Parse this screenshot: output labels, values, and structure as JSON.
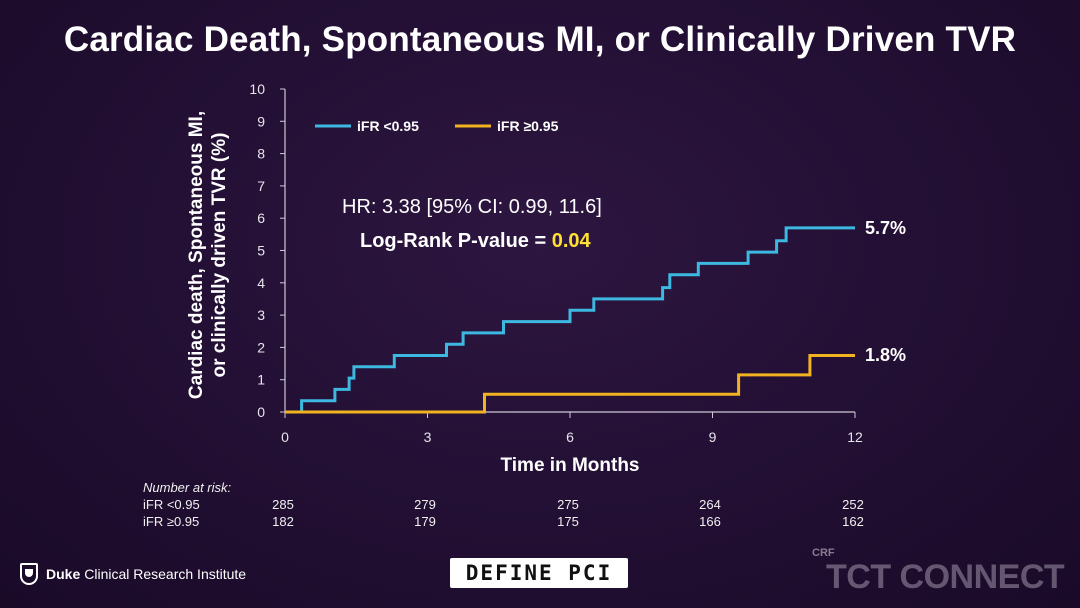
{
  "title": "Cardiac Death, Spontaneous MI, or Clinically Driven TVR",
  "annotations": {
    "hr_text": "HR: 3.38 [95% CI: 0.99, 11.6]",
    "logrank_prefix": "Log-Rank P-value = ",
    "logrank_value": "0.04",
    "logrank_value_color": "#ffe033"
  },
  "chart_data": {
    "type": "line",
    "step": true,
    "ylabel": "Cardiac death, Spontaneous MI,\nor clinically driven TVR (%)",
    "xlabel": "Time in Months",
    "xlim": [
      0,
      12
    ],
    "ylim": [
      0,
      10
    ],
    "xticks": [
      0,
      3,
      6,
      9,
      12
    ],
    "yticks": [
      0,
      1,
      2,
      3,
      4,
      5,
      6,
      7,
      8,
      9,
      10
    ],
    "legend_position": "top-left",
    "series": [
      {
        "name": "iFR <0.95",
        "color": "#3db8e0",
        "end_label": "5.7%",
        "points": [
          [
            0,
            0
          ],
          [
            0.35,
            0
          ],
          [
            0.35,
            0.35
          ],
          [
            1.05,
            0.35
          ],
          [
            1.05,
            0.7
          ],
          [
            1.35,
            0.7
          ],
          [
            1.35,
            1.05
          ],
          [
            1.45,
            1.05
          ],
          [
            1.45,
            1.4
          ],
          [
            2.3,
            1.4
          ],
          [
            2.3,
            1.75
          ],
          [
            3.4,
            1.75
          ],
          [
            3.4,
            2.1
          ],
          [
            3.75,
            2.1
          ],
          [
            3.75,
            2.45
          ],
          [
            4.6,
            2.45
          ],
          [
            4.6,
            2.8
          ],
          [
            6.0,
            2.8
          ],
          [
            6.0,
            3.15
          ],
          [
            6.5,
            3.15
          ],
          [
            6.5,
            3.5
          ],
          [
            7.95,
            3.5
          ],
          [
            7.95,
            3.85
          ],
          [
            8.1,
            3.85
          ],
          [
            8.1,
            4.25
          ],
          [
            8.7,
            4.25
          ],
          [
            8.7,
            4.6
          ],
          [
            9.75,
            4.6
          ],
          [
            9.75,
            4.95
          ],
          [
            10.35,
            4.95
          ],
          [
            10.35,
            5.3
          ],
          [
            10.55,
            5.3
          ],
          [
            10.55,
            5.7
          ],
          [
            12,
            5.7
          ]
        ]
      },
      {
        "name": "iFR ≥0.95",
        "color": "#f2b320",
        "end_label": "1.8%",
        "points": [
          [
            0,
            0
          ],
          [
            4.2,
            0
          ],
          [
            4.2,
            0.55
          ],
          [
            9.55,
            0.55
          ],
          [
            9.55,
            1.15
          ],
          [
            11.05,
            1.15
          ],
          [
            11.05,
            1.75
          ],
          [
            12,
            1.75
          ]
        ]
      }
    ]
  },
  "risk_table": {
    "title": "Number at risk:",
    "times": [
      0,
      3,
      6,
      9,
      12
    ],
    "rows": [
      {
        "label": "iFR <0.95",
        "values": [
          "285",
          "279",
          "275",
          "264",
          "252"
        ]
      },
      {
        "label": "iFR ≥0.95",
        "values": [
          "182",
          "179",
          "175",
          "166",
          "162"
        ]
      }
    ]
  },
  "footer": {
    "institute_bold": "Duke",
    "institute_rest": "Clinical Research Institute",
    "trial_logo": "DEFINE PCI",
    "crf": "CRF",
    "conference": "TCT CONNECT"
  }
}
